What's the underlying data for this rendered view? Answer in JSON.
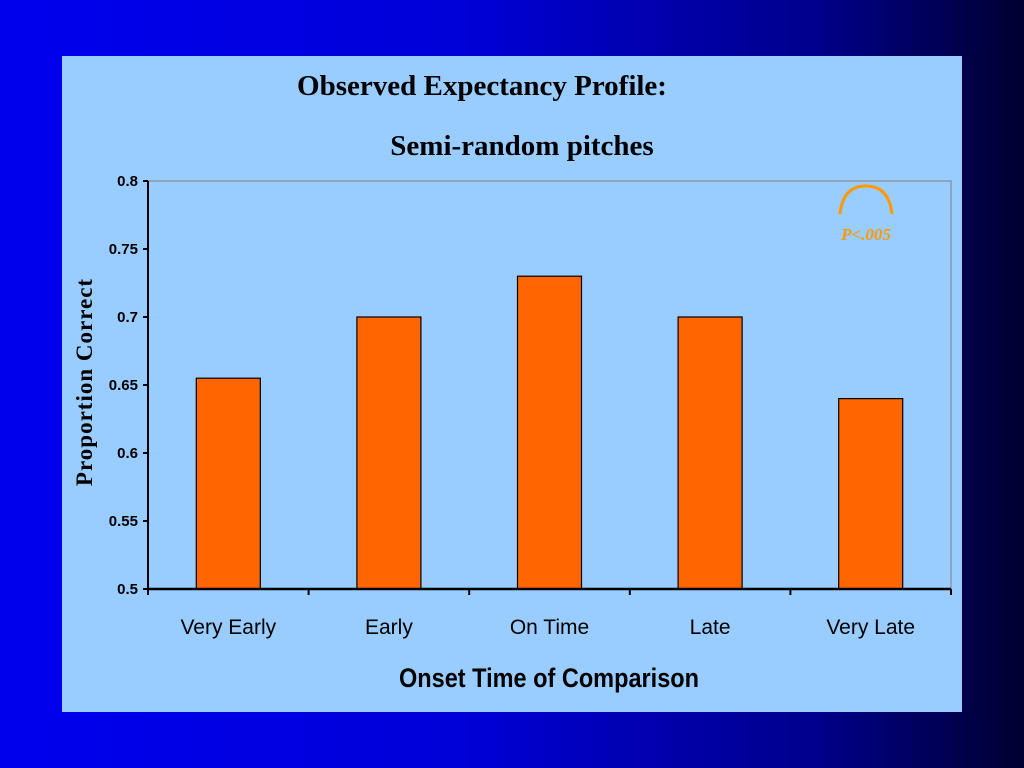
{
  "slide": {
    "title": "Observed Expectancy Profile:",
    "subtitle": "Semi-random pitches"
  },
  "colors": {
    "background": "#0000ee",
    "panel": "#99ccff",
    "bar_fill": "#ff6600",
    "annotation": "#ff9900"
  },
  "chart_data": {
    "type": "bar",
    "title": "Semi-random pitches",
    "xlabel": "Onset Time of Comparison",
    "ylabel": "Proportion Correct",
    "categories": [
      "Very Early",
      "Early",
      "On Time",
      "Late",
      "Very Late"
    ],
    "values": [
      0.655,
      0.7,
      0.73,
      0.7,
      0.64
    ],
    "ylim": [
      0.5,
      0.8
    ],
    "yticks": [
      "0.5",
      "0.55",
      "0.6",
      "0.65",
      "0.7",
      "0.75",
      "0.8"
    ],
    "grid": false,
    "legend": "none",
    "annotation": {
      "text": "P<.005",
      "position": "top-right"
    }
  }
}
